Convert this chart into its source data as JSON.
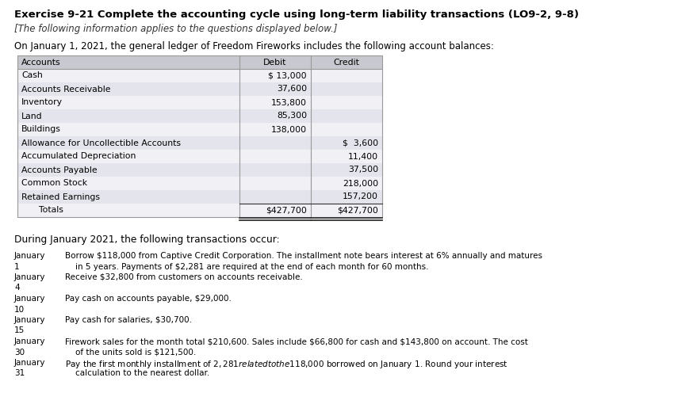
{
  "title": "Exercise 9-21 Complete the accounting cycle using long-term liability transactions (LO9-2, 9-8)",
  "subtitle": "[The following information applies to the questions displayed below.]",
  "intro_text": "On January 1, 2021, the general ledger of Freedom Fireworks includes the following account balances:",
  "table_header": [
    "Accounts",
    "Debit",
    "Credit"
  ],
  "table_rows": [
    [
      "Cash",
      "$ 13,000",
      ""
    ],
    [
      "Accounts Receivable",
      "37,600",
      ""
    ],
    [
      "Inventory",
      "153,800",
      ""
    ],
    [
      "Land",
      "85,300",
      ""
    ],
    [
      "Buildings",
      "138,000",
      ""
    ],
    [
      "Allowance for Uncollectible Accounts",
      "",
      "$  3,600"
    ],
    [
      "Accumulated Depreciation",
      "",
      "11,400"
    ],
    [
      "Accounts Payable",
      "",
      "37,500"
    ],
    [
      "Common Stock",
      "",
      "218,000"
    ],
    [
      "Retained Earnings",
      "",
      "157,200"
    ]
  ],
  "totals_row": [
    "  Totals",
    "$427,700",
    "$427,700"
  ],
  "transactions_header": "During January 2021, the following transactions occur:",
  "transactions": [
    [
      "January",
      "Borrow $118,000 from Captive Credit Corporation. The installment note bears interest at 6% annually and matures"
    ],
    [
      "1",
      "    in 5 years. Payments of $2,281 are required at the end of each month for 60 months."
    ],
    [
      "January",
      "Receive $32,800 from customers on accounts receivable."
    ],
    [
      "4",
      ""
    ],
    [
      "January",
      "Pay cash on accounts payable, $29,000."
    ],
    [
      "10",
      ""
    ],
    [
      "January",
      "Pay cash for salaries, $30,700."
    ],
    [
      "15",
      ""
    ],
    [
      "January",
      "Firework sales for the month total $210,600. Sales include $66,800 for cash and $143,800 on account. The cost"
    ],
    [
      "30",
      "    of the units sold is $121,500."
    ],
    [
      "January",
      "Pay the first monthly installment of $2,281 related to the $118,000 borrowed on January 1. Round your interest"
    ],
    [
      "31",
      "    calculation to the nearest dollar."
    ]
  ],
  "bg_color": "#ffffff",
  "table_header_bg": "#c8c8d0",
  "table_row_odd_bg": "#f0f0f5",
  "table_row_even_bg": "#e4e4ec",
  "border_color": "#999999",
  "text_color": "#000000"
}
